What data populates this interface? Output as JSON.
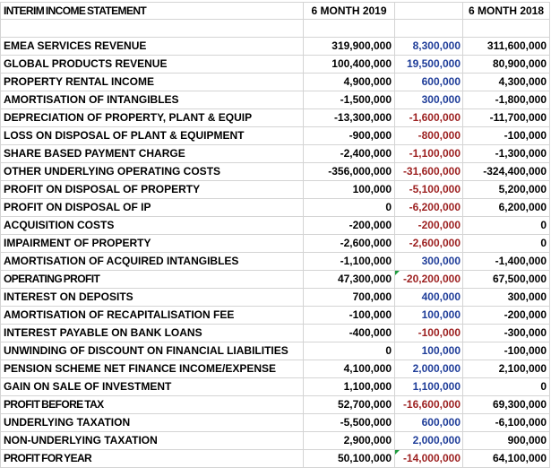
{
  "statement": {
    "title": "INTERIM INCOME STATEMENT",
    "col_2019": "6 MONTH 2019",
    "col_2018": "6 MONTH 2018",
    "rows": [
      {
        "label": "EMEA SERVICES REVENUE",
        "v2019": "319,900,000",
        "delta": "8,300,000",
        "v2018": "311,600,000",
        "delta_color": "blue"
      },
      {
        "label": "GLOBAL PRODUCTS REVENUE",
        "v2019": "100,400,000",
        "delta": "19,500,000",
        "v2018": "80,900,000",
        "delta_color": "blue"
      },
      {
        "label": "PROPERTY RENTAL INCOME",
        "v2019": "4,900,000",
        "delta": "600,000",
        "v2018": "4,300,000",
        "delta_color": "blue"
      },
      {
        "label": "AMORTISATION OF INTANGIBLES",
        "v2019": "-1,500,000",
        "delta": "300,000",
        "v2018": "-1,800,000",
        "delta_color": "blue"
      },
      {
        "label": "DEPRECIATION OF PROPERTY, PLANT & EQUIP",
        "v2019": "-13,300,000",
        "delta": "-1,600,000",
        "v2018": "-11,700,000",
        "delta_color": "red"
      },
      {
        "label": "LOSS ON DISPOSAL OF PLANT & EQUIPMENT",
        "v2019": "-900,000",
        "delta": "-800,000",
        "v2018": "-100,000",
        "delta_color": "red"
      },
      {
        "label": "SHARE BASED PAYMENT CHARGE",
        "v2019": "-2,400,000",
        "delta": "-1,100,000",
        "v2018": "-1,300,000",
        "delta_color": "red"
      },
      {
        "label": "OTHER UNDERLYING OPERATING COSTS",
        "v2019": "-356,000,000",
        "delta": "-31,600,000",
        "v2018": "-324,400,000",
        "delta_color": "red"
      },
      {
        "label": "PROFIT ON DISPOSAL OF PROPERTY",
        "v2019": "100,000",
        "delta": "-5,100,000",
        "v2018": "5,200,000",
        "delta_color": "red"
      },
      {
        "label": "PROFIT ON DISPOSAL OF IP",
        "v2019": "0",
        "delta": "-6,200,000",
        "v2018": "6,200,000",
        "delta_color": "red"
      },
      {
        "label": "ACQUISITION COSTS",
        "v2019": "-200,000",
        "delta": "-200,000",
        "v2018": "0",
        "delta_color": "red"
      },
      {
        "label": "IMPAIRMENT OF PROPERTY",
        "v2019": "-2,600,000",
        "delta": "-2,600,000",
        "v2018": "0",
        "delta_color": "red"
      },
      {
        "label": "AMORTISATION OF ACQUIRED INTANGIBLES",
        "v2019": "-1,100,000",
        "delta": "300,000",
        "v2018": "-1,400,000",
        "delta_color": "blue"
      },
      {
        "label": "OPERATING PROFIT",
        "v2019": "47,300,000",
        "delta": "-20,200,000",
        "v2018": "67,500,000",
        "delta_color": "red",
        "flag": true,
        "condensed": true
      },
      {
        "label": "INTEREST ON DEPOSITS",
        "v2019": "700,000",
        "delta": "400,000",
        "v2018": "300,000",
        "delta_color": "blue"
      },
      {
        "label": "AMORTISATION OF RECAPITALISATION FEE",
        "v2019": "-100,000",
        "delta": "100,000",
        "v2018": "-200,000",
        "delta_color": "blue"
      },
      {
        "label": "INTEREST PAYABLE ON BANK LOANS",
        "v2019": "-400,000",
        "delta": "-100,000",
        "v2018": "-300,000",
        "delta_color": "red"
      },
      {
        "label": "UNWINDING OF DISCOUNT ON FINANCIAL LIABILITIES",
        "v2019": "0",
        "delta": "100,000",
        "v2018": "-100,000",
        "delta_color": "blue"
      },
      {
        "label": "PENSION SCHEME NET FINANCE INCOME/EXPENSE",
        "v2019": "4,100,000",
        "delta": "2,000,000",
        "v2018": "2,100,000",
        "delta_color": "blue"
      },
      {
        "label": "GAIN ON SALE OF INVESTMENT",
        "v2019": "1,100,000",
        "delta": "1,100,000",
        "v2018": "0",
        "delta_color": "blue"
      },
      {
        "label": "PROFIT BEFORE TAX",
        "v2019": "52,700,000",
        "delta": "-16,600,000",
        "v2018": "69,300,000",
        "delta_color": "red",
        "condensed": true
      },
      {
        "label": "UNDERLYING TAXATION",
        "v2019": "-5,500,000",
        "delta": "600,000",
        "v2018": "-6,100,000",
        "delta_color": "blue"
      },
      {
        "label": "NON-UNDERLYING TAXATION",
        "v2019": "2,900,000",
        "delta": "2,000,000",
        "v2018": "900,000",
        "delta_color": "blue"
      },
      {
        "label": "PROFIT FOR YEAR",
        "v2019": "50,100,000",
        "delta": "-14,000,000",
        "v2018": "64,100,000",
        "delta_color": "red",
        "flag": true,
        "condensed": true
      }
    ]
  }
}
